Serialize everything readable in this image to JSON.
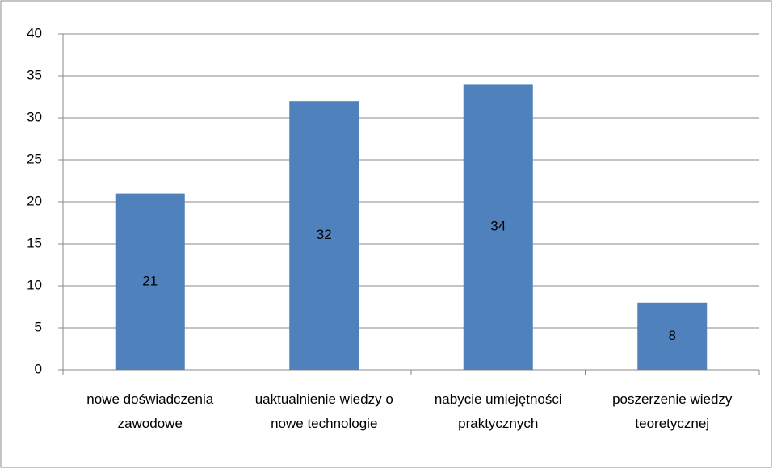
{
  "chart_data": {
    "type": "bar",
    "categories": [
      "nowe doświadczenia zawodowe",
      "uaktualnienie wiedzy o nowe technologie",
      "nabycie umiejętności praktycznych",
      "poszerzenie wiedzy teoretycznej"
    ],
    "values": [
      21,
      32,
      34,
      8
    ],
    "color": "#4f81bd",
    "ylim": [
      0,
      40
    ],
    "yticks": [
      0,
      5,
      10,
      15,
      20,
      25,
      30,
      35,
      40
    ],
    "grid": true,
    "data_labels": true
  }
}
